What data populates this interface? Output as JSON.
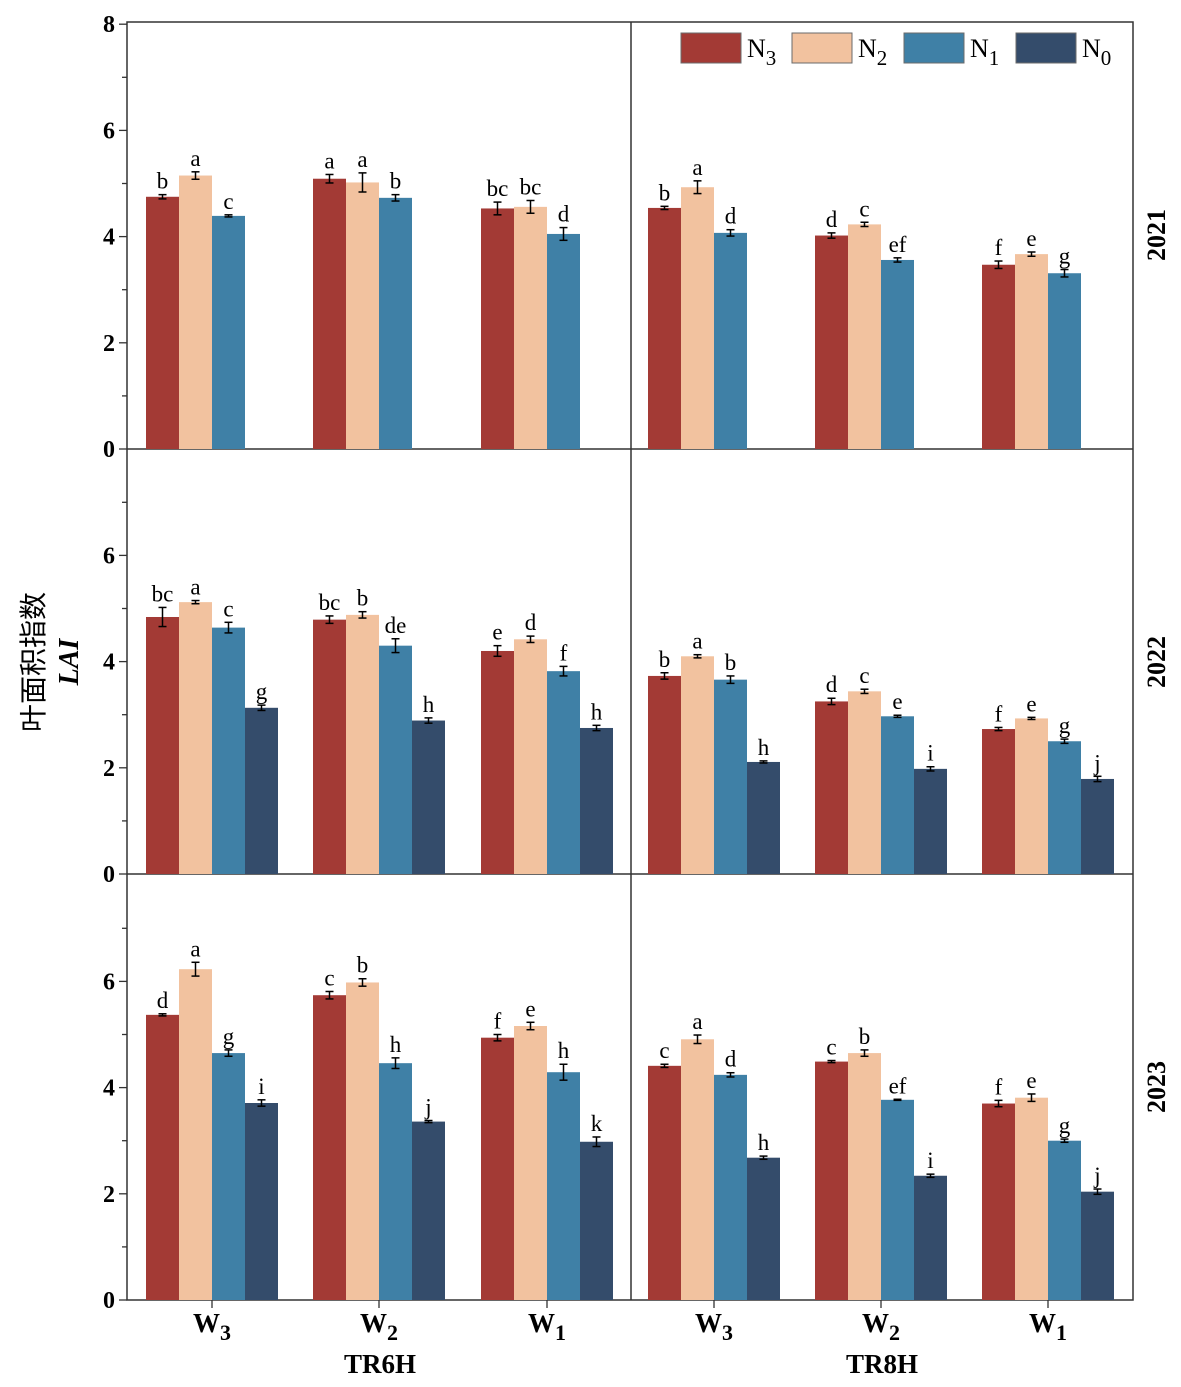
{
  "chart_data": {
    "type": "bar",
    "ylabel_cn": "叶面积指数",
    "ylabel_lai": "LAI",
    "ylim": [
      0,
      8
    ],
    "yticks": [
      0,
      2,
      4,
      6,
      8
    ],
    "groups": [
      "W3",
      "W2",
      "W1"
    ],
    "group_labels": [
      {
        "base": "W",
        "sub": "3"
      },
      {
        "base": "W",
        "sub": "2"
      },
      {
        "base": "W",
        "sub": "1"
      }
    ],
    "treatments": [
      "TR6H",
      "TR8H"
    ],
    "years": [
      "2021",
      "2022",
      "2023"
    ],
    "series": [
      {
        "name": "N3",
        "base": "N",
        "sub": "3",
        "color": "#a33a35"
      },
      {
        "name": "N2",
        "base": "N",
        "sub": "2",
        "color": "#f2c29f"
      },
      {
        "name": "N1",
        "base": "N",
        "sub": "1",
        "color": "#3f80a6"
      },
      {
        "name": "N0",
        "base": "N",
        "sub": "0",
        "color": "#344c6b"
      }
    ],
    "legend": "top-right",
    "panels": [
      {
        "year": "2021",
        "treatment": "TR6H",
        "values": [
          [
            4.75,
            5.15,
            4.39,
            null
          ],
          [
            5.09,
            5.02,
            4.73,
            null
          ],
          [
            4.53,
            4.56,
            4.05,
            null
          ]
        ],
        "errors": [
          [
            0.04,
            0.07,
            0.02,
            null
          ],
          [
            0.08,
            0.18,
            0.06,
            null
          ],
          [
            0.12,
            0.12,
            0.12,
            null
          ]
        ],
        "labels": [
          [
            "b",
            "a",
            "c",
            ""
          ],
          [
            "a",
            "a",
            "b",
            ""
          ],
          [
            "bc",
            "bc",
            "d",
            ""
          ]
        ]
      },
      {
        "year": "2021",
        "treatment": "TR8H",
        "values": [
          [
            4.54,
            4.93,
            4.07,
            null
          ],
          [
            4.02,
            4.23,
            3.56,
            null
          ],
          [
            3.47,
            3.67,
            3.31,
            null
          ]
        ],
        "errors": [
          [
            0.03,
            0.12,
            0.06,
            null
          ],
          [
            0.05,
            0.04,
            0.04,
            null
          ],
          [
            0.07,
            0.04,
            0.07,
            null
          ]
        ],
        "labels": [
          [
            "b",
            "a",
            "d",
            ""
          ],
          [
            "d",
            "c",
            "ef",
            ""
          ],
          [
            "f",
            "e",
            "g",
            ""
          ]
        ]
      },
      {
        "year": "2022",
        "treatment": "TR6H",
        "values": [
          [
            4.84,
            5.12,
            4.64,
            3.13
          ],
          [
            4.79,
            4.88,
            4.3,
            2.89
          ],
          [
            4.2,
            4.42,
            3.82,
            2.75
          ]
        ],
        "errors": [
          [
            0.18,
            0.03,
            0.1,
            0.05
          ],
          [
            0.07,
            0.06,
            0.13,
            0.05
          ],
          [
            0.1,
            0.06,
            0.09,
            0.05
          ]
        ],
        "labels": [
          [
            "bc",
            "a",
            "c",
            "g"
          ],
          [
            "bc",
            "b",
            "de",
            "h"
          ],
          [
            "e",
            "d",
            "f",
            "h"
          ]
        ]
      },
      {
        "year": "2022",
        "treatment": "TR8H",
        "values": [
          [
            3.73,
            4.1,
            3.66,
            2.11
          ],
          [
            3.25,
            3.44,
            2.97,
            1.98
          ],
          [
            2.73,
            2.93,
            2.5,
            1.79
          ]
        ],
        "errors": [
          [
            0.06,
            0.03,
            0.07,
            0.02
          ],
          [
            0.06,
            0.04,
            0.02,
            0.04
          ],
          [
            0.03,
            0.02,
            0.04,
            0.05
          ]
        ],
        "labels": [
          [
            "b",
            "a",
            "b",
            "h"
          ],
          [
            "d",
            "c",
            "e",
            "i"
          ],
          [
            "f",
            "e",
            "g",
            "j"
          ]
        ]
      },
      {
        "year": "2023",
        "treatment": "TR6H",
        "values": [
          [
            5.37,
            6.23,
            4.65,
            3.71
          ],
          [
            5.74,
            5.98,
            4.46,
            3.36
          ],
          [
            4.94,
            5.16,
            4.29,
            2.98
          ]
        ],
        "errors": [
          [
            0.02,
            0.13,
            0.06,
            0.06
          ],
          [
            0.07,
            0.07,
            0.1,
            0.02
          ],
          [
            0.06,
            0.07,
            0.15,
            0.09
          ]
        ],
        "labels": [
          [
            "d",
            "a",
            "g",
            "i"
          ],
          [
            "c",
            "b",
            "h",
            "j"
          ],
          [
            "f",
            "e",
            "h",
            "k"
          ]
        ]
      },
      {
        "year": "2023",
        "treatment": "TR8H",
        "values": [
          [
            4.41,
            4.91,
            4.24,
            2.68
          ],
          [
            4.49,
            4.65,
            3.77,
            2.34
          ],
          [
            3.7,
            3.81,
            3.0,
            2.04
          ]
        ],
        "errors": [
          [
            0.03,
            0.08,
            0.04,
            0.03
          ],
          [
            0.02,
            0.06,
            0.01,
            0.03
          ],
          [
            0.06,
            0.07,
            0.03,
            0.05
          ]
        ],
        "labels": [
          [
            "c",
            "a",
            "d",
            "h"
          ],
          [
            "c",
            "b",
            "ef",
            "i"
          ],
          [
            "f",
            "e",
            "g",
            "j"
          ]
        ]
      }
    ]
  }
}
